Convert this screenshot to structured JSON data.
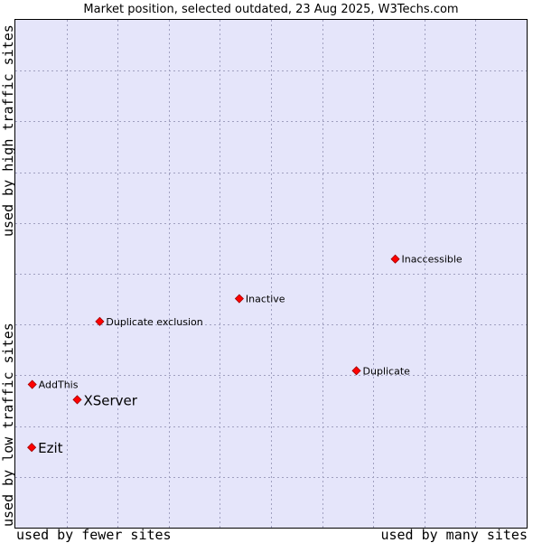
{
  "chart_data": {
    "type": "scatter",
    "title": "Market position, selected outdated, 23 Aug 2025, W3Techs.com",
    "xlabel_low": "used by fewer sites",
    "xlabel_high": "used by many sites",
    "ylabel_high": "used by high traffic sites",
    "ylabel_low": "used by low traffic sites",
    "xlim": [
      0,
      100
    ],
    "ylim": [
      0,
      100
    ],
    "grid": true,
    "points": [
      {
        "label": "Inaccessible",
        "x": 74.3,
        "y": 52.9,
        "highlight": false
      },
      {
        "label": "Inactive",
        "x": 43.8,
        "y": 45.1,
        "highlight": false
      },
      {
        "label": "Duplicate exclusion",
        "x": 16.5,
        "y": 40.6,
        "highlight": false
      },
      {
        "label": "Duplicate",
        "x": 66.7,
        "y": 30.9,
        "highlight": false
      },
      {
        "label": "AddThis",
        "x": 3.3,
        "y": 28.2,
        "highlight": false
      },
      {
        "label": "XServer",
        "x": 12.1,
        "y": 25.2,
        "highlight": true
      },
      {
        "label": "Ezit",
        "x": 3.2,
        "y": 15.8,
        "highlight": true
      }
    ]
  },
  "colors": {
    "plot_background": "#e5e5fa",
    "grid": "#a0a0c0",
    "marker": "#ff0000",
    "marker_edge": "#a00000"
  }
}
